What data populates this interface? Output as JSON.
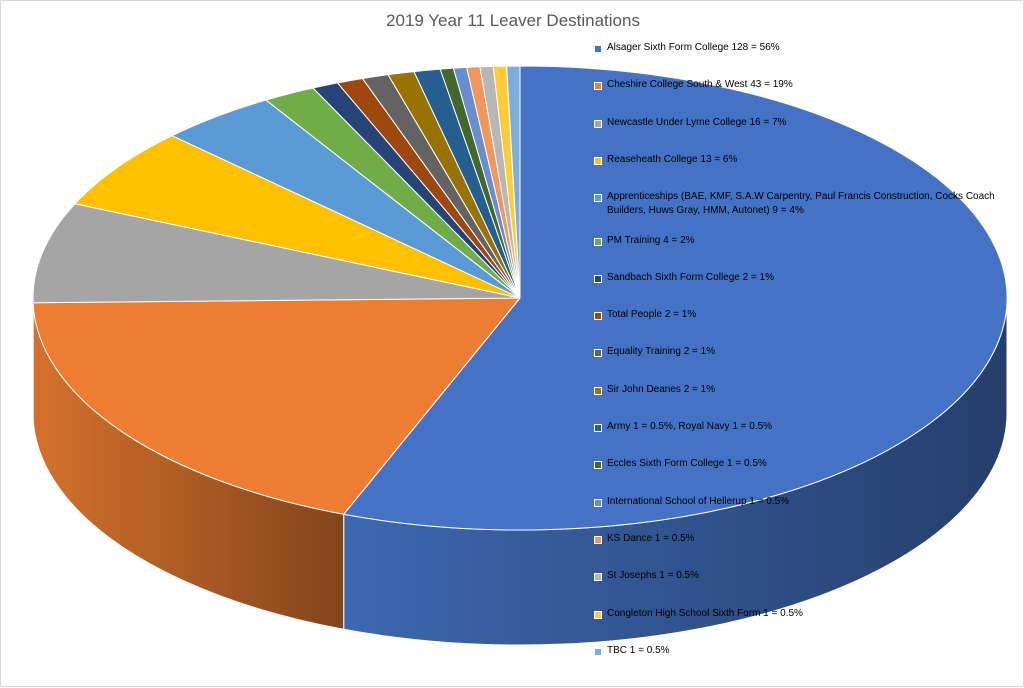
{
  "chart_data": {
    "type": "pie",
    "title": "2019 Year 11 Leaver Destinations",
    "legend_position": "right",
    "three_d": true,
    "slices": [
      {
        "label": "Alsager Sixth Form College 128 = 56%",
        "value": 128,
        "color": "#4472C4"
      },
      {
        "label": "Cheshire College South & West 43 = 19%",
        "value": 43,
        "color": "#ED7D31"
      },
      {
        "label": "Newcastle Under Lyme College 16 = 7%",
        "value": 16,
        "color": "#A5A5A5"
      },
      {
        "label": "Reaseheath College 13 =  6%",
        "value": 13,
        "color": "#FFC000"
      },
      {
        "label": "Apprenticeships (BAE, KMF, S.A.W Carpentry, Paul Francis Construction, Cocks Coach Builders, Huws Gray, HMM, Autonet) 9 = 4%",
        "value": 9,
        "color": "#5B9BD5"
      },
      {
        "label": "PM Training 4 = 2%",
        "value": 4,
        "color": "#70AD47"
      },
      {
        "label": "Sandbach Sixth Form College 2 =  1%",
        "value": 2,
        "color": "#264478"
      },
      {
        "label": "Total People 2 =  1%",
        "value": 2,
        "color": "#9E480E"
      },
      {
        "label": "Equality Training 2 = 1%",
        "value": 2,
        "color": "#636363"
      },
      {
        "label": "Sir John Deanes 2 = 1%",
        "value": 2,
        "color": "#997300"
      },
      {
        "label": "Army 1 = 0.5%, Royal Navy 1 = 0.5%",
        "value": 2,
        "color": "#255E91"
      },
      {
        "label": "Eccles Sixth Form College 1 = 0.5%",
        "value": 1,
        "color": "#43682B"
      },
      {
        "label": "International School of Hellerup 1 = 0.5%",
        "value": 1,
        "color": "#698ED0"
      },
      {
        "label": "KS Dance 1 =  0.5%",
        "value": 1,
        "color": "#F1975A"
      },
      {
        "label": "St Josephs 1 =  0.5%",
        "value": 1,
        "color": "#B7B7B7"
      },
      {
        "label": "Congleton High School Sixth Form 1 = 0.5%",
        "value": 1,
        "color": "#FFCD33"
      },
      {
        "label": "TBC 1 = 0.5%",
        "value": 1,
        "color": "#7CAFDD"
      }
    ]
  }
}
